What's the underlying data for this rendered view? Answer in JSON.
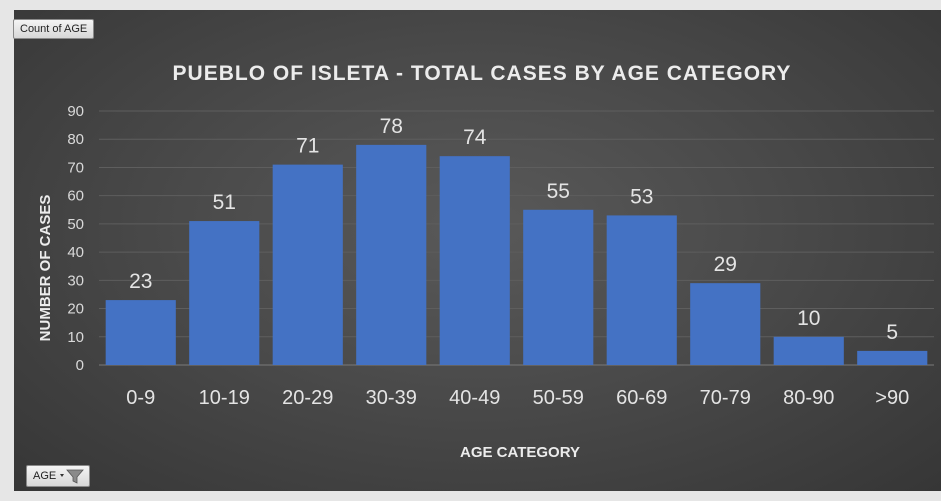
{
  "pivot": {
    "value_field": "Count of AGE",
    "axis_field": "AGE"
  },
  "colors": {
    "bar": "#4472c4",
    "background": "#4a4a4a",
    "gridline": "#5e5e5e",
    "text": "#e4e4e4"
  },
  "chart_data": {
    "type": "bar",
    "title": "PUEBLO OF ISLETA - TOTAL CASES BY AGE CATEGORY",
    "xlabel": "AGE CATEGORY",
    "ylabel": "NUMBER OF CASES",
    "categories": [
      "0-9",
      "10-19",
      "20-29",
      "30-39",
      "40-49",
      "50-59",
      "60-69",
      "70-79",
      "80-90",
      ">90"
    ],
    "values": [
      23,
      51,
      71,
      78,
      74,
      55,
      53,
      29,
      10,
      5
    ],
    "ylim": [
      0,
      90
    ],
    "yticks": [
      0,
      10,
      20,
      30,
      40,
      50,
      60,
      70,
      80,
      90
    ],
    "grid": true,
    "legend": "none",
    "data_labels": true
  }
}
